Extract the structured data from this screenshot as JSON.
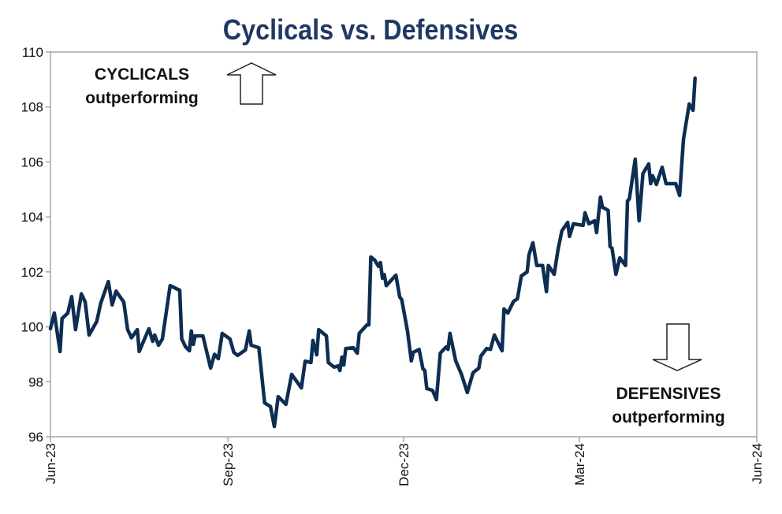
{
  "chart_data": {
    "type": "line",
    "title": "Cyclicals vs. Defensives",
    "xlabel": "",
    "ylabel": "",
    "ylim": [
      96,
      110
    ],
    "xlim": [
      "2023-06-01",
      "2024-06-01"
    ],
    "yticks": [
      96,
      98,
      100,
      102,
      104,
      106,
      108,
      110
    ],
    "xticks": [
      {
        "date": "2023-06-01",
        "label": "Jun-23"
      },
      {
        "date": "2023-09-01",
        "label": "Sep-23"
      },
      {
        "date": "2023-12-01",
        "label": "Dec-23"
      },
      {
        "date": "2024-03-01",
        "label": "Mar-24"
      },
      {
        "date": "2024-06-01",
        "label": "Jun-24"
      }
    ],
    "grid": false,
    "legend": "none",
    "annotations": {
      "top": {
        "line1": "CYCLICALS",
        "line2": "outperforming",
        "arrow": "up"
      },
      "bottom": {
        "line1": "DEFENSIVES",
        "line2": "outperforming",
        "arrow": "down"
      }
    },
    "colors": {
      "line": "#0d2d52",
      "title": "#1f3864",
      "axis": "#a6a6a6"
    },
    "series": [
      {
        "x": [
          "2023-06-01",
          "2023-06-03",
          "2023-06-06",
          "2023-06-07",
          "2023-06-10",
          "2023-06-12",
          "2023-06-14",
          "2023-06-17",
          "2023-06-19",
          "2023-06-21",
          "2023-06-25",
          "2023-06-27",
          "2023-07-01",
          "2023-07-03",
          "2023-07-05",
          "2023-07-09",
          "2023-07-11",
          "2023-07-13",
          "2023-07-16",
          "2023-07-17",
          "2023-07-22",
          "2023-07-24",
          "2023-07-25",
          "2023-07-27",
          "2023-07-29",
          "2023-08-02",
          "2023-08-07",
          "2023-08-08",
          "2023-08-10",
          "2023-08-12",
          "2023-08-13",
          "2023-08-14",
          "2023-08-15",
          "2023-08-19",
          "2023-08-23",
          "2023-08-25",
          "2023-08-27",
          "2023-08-29",
          "2023-09-02",
          "2023-09-04",
          "2023-09-06",
          "2023-09-10",
          "2023-09-12",
          "2023-09-13",
          "2023-09-17",
          "2023-09-20",
          "2023-09-23",
          "2023-09-25",
          "2023-09-27",
          "2023-10-01",
          "2023-10-04",
          "2023-10-09",
          "2023-10-11",
          "2023-10-14",
          "2023-10-15",
          "2023-10-17",
          "2023-10-18",
          "2023-10-22",
          "2023-10-23",
          "2023-10-26",
          "2023-10-28",
          "2023-10-29",
          "2023-10-30",
          "2023-10-31",
          "2023-11-01",
          "2023-11-05",
          "2023-11-07",
          "2023-11-08",
          "2023-11-12",
          "2023-11-13",
          "2023-11-14",
          "2023-11-16",
          "2023-11-18",
          "2023-11-19",
          "2023-11-20",
          "2023-11-21",
          "2023-11-22",
          "2023-11-27",
          "2023-11-29",
          "2023-11-30",
          "2023-12-03",
          "2023-12-05",
          "2023-12-06",
          "2023-12-09",
          "2023-12-11",
          "2023-12-12",
          "2023-12-13",
          "2023-12-16",
          "2023-12-18",
          "2023-12-20",
          "2023-12-23",
          "2023-12-24",
          "2023-12-25",
          "2023-12-28",
          "2023-12-31",
          "2024-01-03",
          "2024-01-06",
          "2024-01-09",
          "2024-01-10",
          "2024-01-13",
          "2024-01-15",
          "2024-01-17",
          "2024-01-21",
          "2024-01-22",
          "2024-01-24",
          "2024-01-27",
          "2024-01-29",
          "2024-01-31",
          "2024-02-03",
          "2024-02-04",
          "2024-02-06",
          "2024-02-08",
          "2024-02-11",
          "2024-02-13",
          "2024-02-14",
          "2024-02-17",
          "2024-02-19",
          "2024-02-21",
          "2024-02-24",
          "2024-02-25",
          "2024-02-27",
          "2024-03-03",
          "2024-03-04",
          "2024-03-06",
          "2024-03-09",
          "2024-03-10",
          "2024-03-12",
          "2024-03-13",
          "2024-03-16",
          "2024-03-17",
          "2024-03-18",
          "2024-03-20",
          "2024-03-22",
          "2024-03-25",
          "2024-03-26",
          "2024-03-27",
          "2024-03-30",
          "2024-04-01",
          "2024-04-03",
          "2024-04-06",
          "2024-04-07",
          "2024-04-08",
          "2024-04-10",
          "2024-04-13",
          "2024-04-15",
          "2024-04-20",
          "2024-04-22",
          "2024-04-24",
          "2024-04-27",
          "2024-04-29",
          "2024-04-30"
        ],
        "values": [
          99.93,
          100.5,
          99.1,
          100.3,
          100.5,
          101.1,
          99.9,
          101.2,
          100.9,
          99.7,
          100.2,
          100.85,
          101.65,
          100.8,
          101.3,
          100.9,
          99.9,
          99.6,
          99.9,
          99.1,
          99.93,
          99.47,
          99.7,
          99.33,
          99.56,
          101.5,
          101.33,
          99.56,
          99.27,
          99.13,
          99.85,
          99.36,
          99.67,
          99.67,
          98.5,
          99.0,
          98.84,
          99.76,
          99.56,
          99.07,
          98.96,
          99.16,
          99.85,
          99.33,
          99.24,
          97.23,
          97.1,
          96.37,
          97.46,
          97.18,
          98.27,
          97.78,
          98.75,
          98.7,
          99.5,
          98.98,
          99.9,
          99.67,
          98.7,
          98.53,
          98.58,
          98.41,
          98.9,
          98.61,
          99.21,
          99.24,
          99.04,
          99.76,
          100.07,
          100.07,
          102.54,
          102.43,
          102.2,
          102.34,
          101.77,
          101.9,
          101.5,
          101.88,
          101.08,
          100.99,
          99.85,
          98.76,
          99.07,
          99.18,
          98.47,
          98.41,
          97.75,
          97.69,
          97.35,
          99.04,
          99.27,
          99.18,
          99.76,
          98.76,
          98.27,
          97.61,
          98.33,
          98.5,
          98.93,
          99.21,
          99.18,
          99.7,
          99.13,
          100.65,
          100.5,
          100.93,
          101.02,
          101.85,
          102.0,
          102.63,
          103.06,
          102.23,
          102.23,
          101.28,
          102.23,
          101.91,
          102.8,
          103.49,
          103.8,
          103.29,
          103.75,
          103.69,
          104.15,
          103.75,
          103.86,
          103.43,
          104.72,
          104.35,
          104.24,
          102.92,
          102.86,
          101.91,
          102.51,
          102.23,
          104.58,
          104.66,
          106.1,
          103.86,
          105.58,
          105.93,
          105.21,
          105.5,
          105.18,
          105.81,
          105.21,
          105.21,
          104.78,
          106.82,
          108.11,
          107.88,
          109.05
        ]
      }
    ]
  }
}
